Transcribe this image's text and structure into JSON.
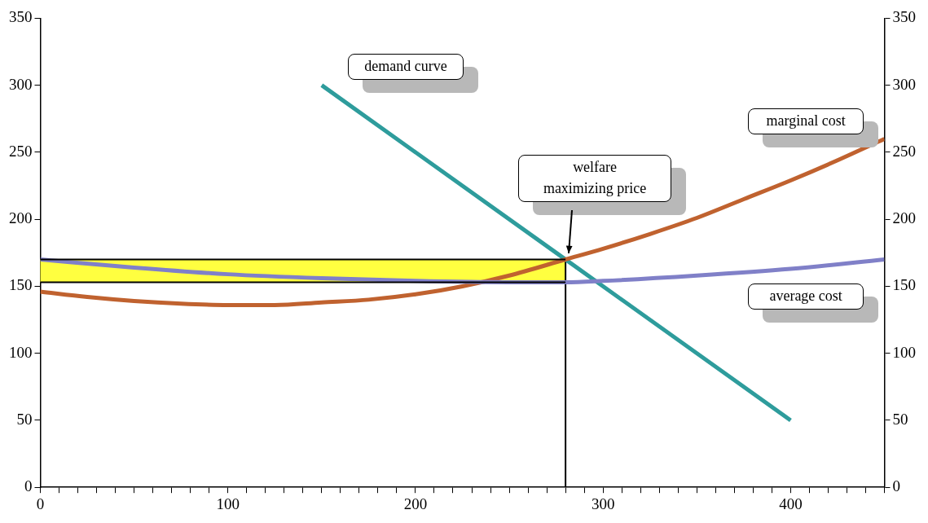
{
  "chart_data": {
    "type": "line",
    "xlim": [
      0,
      450
    ],
    "xticks": [
      0,
      {
        "value": 10,
        "label": null
      },
      {
        "value": 20,
        "label": null
      },
      {
        "value": 30,
        "label": null
      },
      {
        "value": 40,
        "label": null
      },
      {
        "value": 50,
        "label": null
      },
      {
        "value": 60,
        "label": null
      },
      {
        "value": 70,
        "label": null
      },
      {
        "value": 80,
        "label": null
      },
      {
        "value": 90,
        "label": null
      },
      100,
      {
        "value": 110,
        "label": null
      },
      {
        "value": 120,
        "label": null
      },
      {
        "value": 130,
        "label": null
      },
      {
        "value": 140,
        "label": null
      },
      {
        "value": 150,
        "label": null
      },
      {
        "value": 160,
        "label": null
      },
      {
        "value": 170,
        "label": null
      },
      {
        "value": 180,
        "label": null
      },
      {
        "value": 190,
        "label": null
      },
      200,
      {
        "value": 210,
        "label": null
      },
      {
        "value": 220,
        "label": null
      },
      {
        "value": 230,
        "label": null
      },
      {
        "value": 240,
        "label": null
      },
      {
        "value": 250,
        "label": null
      },
      {
        "value": 260,
        "label": null
      },
      {
        "value": 270,
        "label": null
      },
      {
        "value": 280,
        "label": null
      },
      {
        "value": 290,
        "label": null
      },
      300,
      {
        "value": 310,
        "label": null
      },
      {
        "value": 320,
        "label": null
      },
      {
        "value": 330,
        "label": null
      },
      {
        "value": 340,
        "label": null
      },
      {
        "value": 350,
        "label": null
      },
      {
        "value": 360,
        "label": null
      },
      {
        "value": 370,
        "label": null
      },
      {
        "value": 380,
        "label": null
      },
      {
        "value": 390,
        "label": null
      },
      400,
      {
        "value": 410,
        "label": null
      },
      {
        "value": 420,
        "label": null
      },
      {
        "value": 430,
        "label": null
      },
      {
        "value": 440,
        "label": null
      },
      {
        "value": 450,
        "label": null
      }
    ],
    "ylim": [
      0,
      350
    ],
    "yticks": [
      0,
      50,
      100,
      150,
      200,
      250,
      300,
      350
    ],
    "y2lim": [
      0,
      350
    ],
    "y2ticks": [
      0,
      50,
      100,
      150,
      200,
      250,
      300,
      350
    ],
    "grid": false,
    "legend": false,
    "marker": "none",
    "series": [
      {
        "color": "#000000",
        "x": [
          0,
          280
        ],
        "values": [
          170,
          170
        ],
        "lower": [
          153,
          153
        ],
        "upper": [
          170,
          170
        ]
      },
      {
        "color": "#000000",
        "x": [
          0,
          280
        ],
        "values": [
          153,
          153
        ]
      },
      {
        "color": "#8080c8",
        "x": [
          0,
          50,
          100,
          150,
          200,
          250,
          280,
          300,
          350,
          400,
          450
        ],
        "values": [
          170,
          164,
          159,
          156,
          154,
          153,
          153,
          154,
          158,
          163,
          170
        ]
      },
      {
        "color": "#c0622f",
        "x": [
          0,
          25,
          50,
          75,
          100,
          125,
          150,
          175,
          200,
          225,
          250,
          280,
          300,
          325,
          350,
          375,
          400,
          425,
          450
        ],
        "values": [
          146,
          142,
          139,
          137,
          136,
          136,
          138,
          140,
          144,
          150,
          158,
          170,
          178,
          189,
          201,
          215,
          229,
          244,
          260
        ]
      },
      {
        "color": "#2e9c9c",
        "x": [
          150,
          400
        ],
        "values": [
          300,
          50
        ]
      },
      {
        "color": "#000000",
        "x": [
          280,
          280
        ],
        "values": [
          0,
          170
        ]
      }
    ],
    "annotations": [
      "demand curve",
      "marginal cost",
      {
        "text": "welfare maximizing price",
        "x": 280,
        "y": 170
      },
      "average cost"
    ]
  }
}
